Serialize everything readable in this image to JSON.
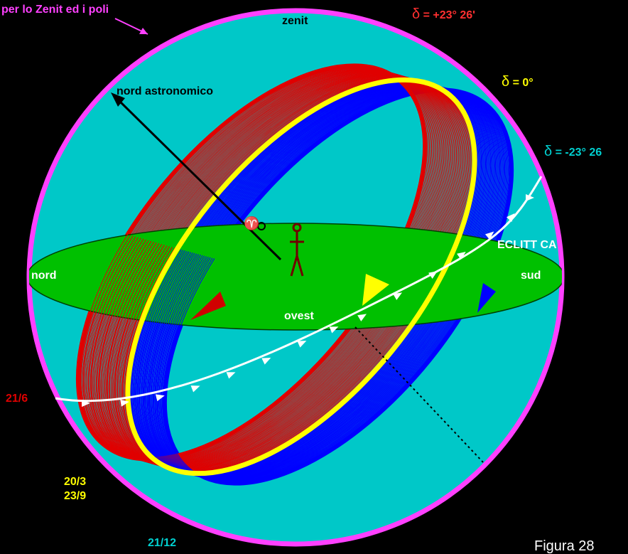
{
  "labels": {
    "circle_note": "per lo Zenit ed i poli",
    "zenit": "zenit",
    "nord_astronomico": "nord astronomico",
    "nord": "nord",
    "sud": "sud",
    "ovest": "ovest",
    "eclittica": "ECLITT CA",
    "date_summer": "21/6",
    "date_equinox_1": "20/3",
    "date_equinox_2": "23/9",
    "date_winter": "21/12",
    "aries_symbol": "♈",
    "caption": "Figura 28"
  },
  "declinations": {
    "delta_symbol": "δ",
    "plus": "= +23° 26'",
    "zero": "= 0°",
    "minus": "= -23° 26"
  },
  "colors": {
    "background": "#000000",
    "sphere": "#00c8c8",
    "sphere_outline": "#ff40ff",
    "horizon": "#00c000",
    "summer": "#e00000",
    "equator": "#ffff00",
    "winter": "#0000ff",
    "ecliptic": "#ffffff",
    "date_summer_color": "#e00000",
    "date_equinox_color": "#ffff00",
    "date_winter_color": "#00d0d0"
  }
}
